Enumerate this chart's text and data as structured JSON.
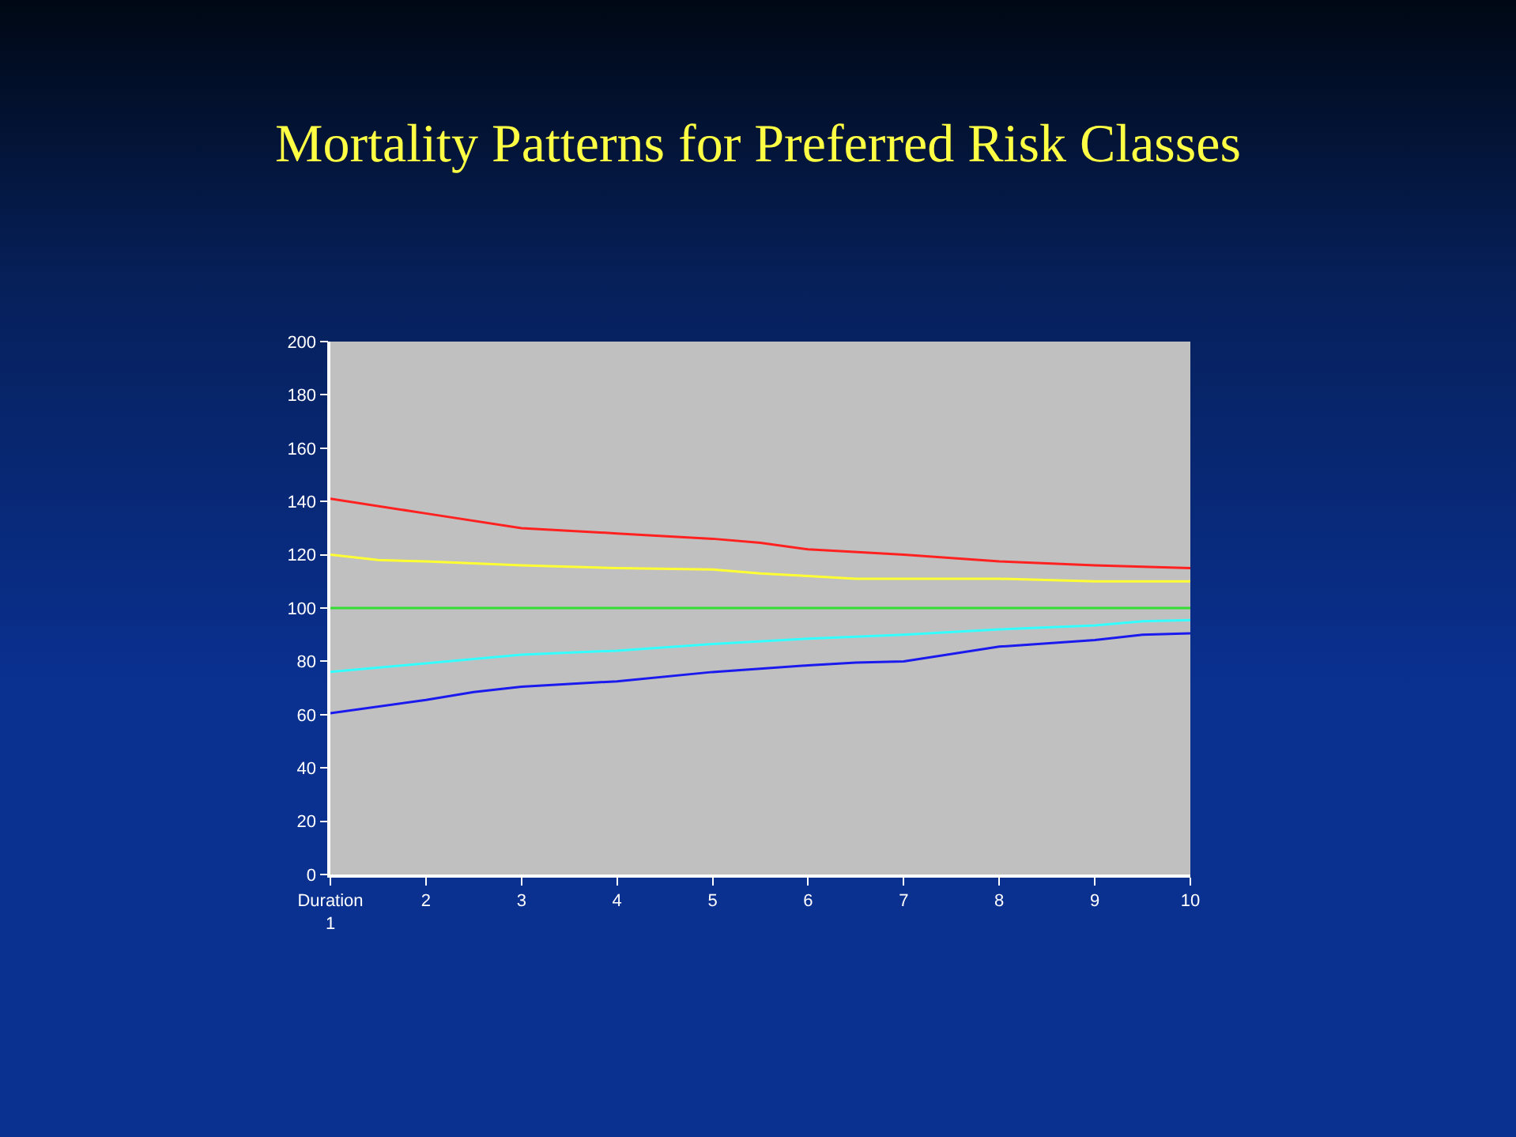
{
  "chart_data": {
    "type": "line",
    "title": "Mortality Patterns for Preferred Risk Classes",
    "xlim": [
      1,
      10
    ],
    "xticks": [
      {
        "value": 1,
        "label": "Duration\n1"
      },
      2,
      3,
      4,
      5,
      6,
      7,
      8,
      9,
      10
    ],
    "ylim": [
      0,
      200
    ],
    "yticks": [
      0,
      20,
      40,
      60,
      80,
      100,
      120,
      140,
      160,
      180,
      200
    ],
    "grid": false,
    "series": [
      {
        "color": "#ff2020",
        "x": [
          1,
          2,
          3,
          4,
          5,
          5.5,
          6,
          7,
          8,
          9,
          10
        ],
        "values": [
          141,
          135.5,
          130,
          128,
          126,
          124.5,
          122,
          120,
          117.5,
          116,
          115
        ]
      },
      {
        "color": "#ffff33",
        "x": [
          1,
          1.5,
          2,
          3,
          4,
          5,
          5.5,
          6,
          6.5,
          7,
          8,
          9,
          10
        ],
        "values": [
          120,
          118,
          117.5,
          116,
          115,
          114.5,
          113,
          112,
          111,
          111,
          111,
          110,
          110
        ]
      },
      {
        "color": "#33dd33",
        "x": [
          1,
          10
        ],
        "values": [
          100,
          100
        ]
      },
      {
        "color": "#33ffff",
        "x": [
          1,
          3,
          4,
          5,
          6,
          7,
          8,
          9,
          9.5,
          10
        ],
        "values": [
          76,
          82.5,
          84,
          86.5,
          88.5,
          90,
          92,
          93.5,
          95,
          95.5
        ]
      },
      {
        "color": "#1a1aee",
        "x": [
          1,
          2,
          2.5,
          3,
          4,
          5,
          6,
          6.5,
          7,
          8,
          9,
          9.5,
          10
        ],
        "values": [
          60.5,
          65.5,
          68.5,
          70.5,
          72.5,
          76,
          78.5,
          79.5,
          80,
          85.5,
          88,
          90,
          90.5
        ]
      }
    ]
  }
}
